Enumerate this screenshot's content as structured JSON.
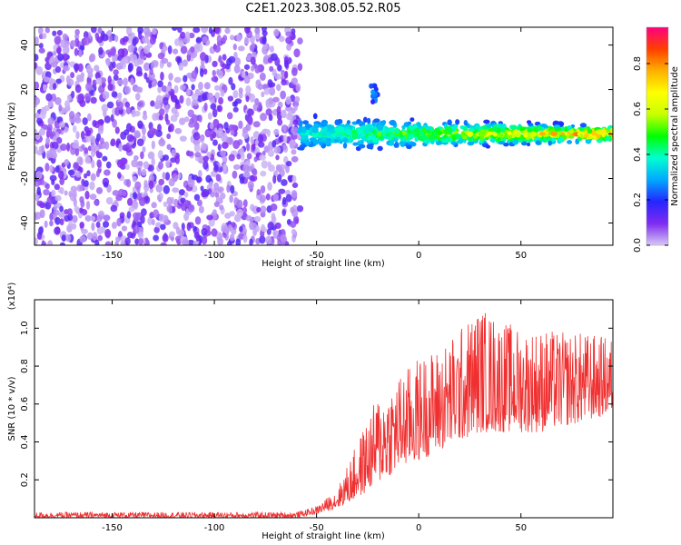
{
  "title": "C2E1.2023.308.05.52.R05",
  "chart_data": [
    {
      "type": "heatmap",
      "xlabel": "Height of straight line (km)",
      "ylabel": "Frequency (Hz)",
      "xlim": [
        -188,
        95
      ],
      "ylim": [
        -50,
        48
      ],
      "xticks": [
        -150,
        -100,
        -50,
        0,
        50
      ],
      "yticks": [
        -40,
        -20,
        0,
        20,
        40
      ],
      "colorbar": {
        "label": "Normalized spectral amplitude",
        "range": [
          0.0,
          0.96
        ],
        "ticks": [
          0.0,
          0.2,
          0.4,
          0.6,
          0.8
        ],
        "colors": [
          "#d6c8f5",
          "#7f2bf0",
          "#2525ff",
          "#00a8ff",
          "#00ffd0",
          "#00ff00",
          "#c8ff00",
          "#ffff00",
          "#ffb000",
          "#ff4000",
          "#ff0080"
        ]
      },
      "regions": [
        {
          "x_range": [
            -188,
            -58
          ],
          "freq_range": [
            -50,
            48
          ],
          "amplitude": [
            0.05,
            0.15
          ]
        },
        {
          "x_range": [
            -58,
            95
          ],
          "freq_center": 0,
          "freq_halfwidth": 4,
          "amplitude": [
            0.2,
            0.9
          ]
        }
      ],
      "features": [
        {
          "x": -22,
          "freq": 18,
          "amplitude": 0.25
        }
      ]
    },
    {
      "type": "line",
      "xlabel": "Height of straight line (km)",
      "ylabel": "SNR (10 * v/v)",
      "y_multiplier": "(x10⁴)",
      "xlim": [
        -188,
        95
      ],
      "ylim": [
        0,
        1.15
      ],
      "xticks": [
        -150,
        -100,
        -50,
        0,
        50
      ],
      "yticks": [
        0.2,
        0.4,
        0.6,
        0.8,
        1.0
      ],
      "series_color": "#f03030",
      "envelope": {
        "x": [
          -188,
          -60,
          -50,
          -40,
          -30,
          -20,
          -10,
          0,
          10,
          20,
          30,
          40,
          50,
          60,
          70,
          80,
          95
        ],
        "y_low": [
          0.0,
          0.0,
          0.02,
          0.05,
          0.1,
          0.18,
          0.25,
          0.3,
          0.35,
          0.4,
          0.45,
          0.45,
          0.45,
          0.45,
          0.48,
          0.5,
          0.55
        ],
        "y_high": [
          0.03,
          0.03,
          0.06,
          0.15,
          0.4,
          0.65,
          0.75,
          0.85,
          0.9,
          1.0,
          1.12,
          1.05,
          1.0,
          1.0,
          0.98,
          0.98,
          0.95
        ]
      }
    }
  ]
}
